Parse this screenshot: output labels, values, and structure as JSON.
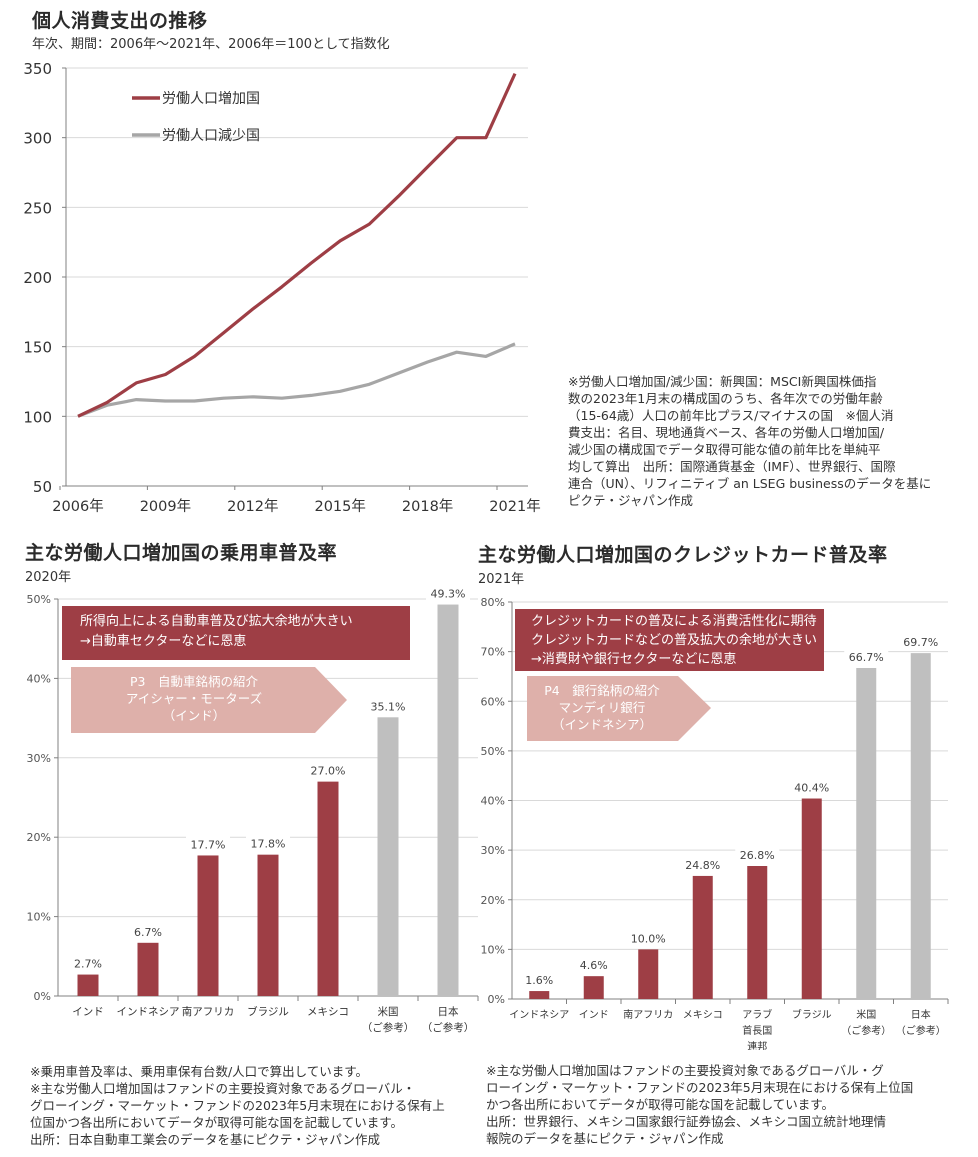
{
  "colors": {
    "increase": "#9e3e45",
    "decrease": "#a6a6a6",
    "reference": "#bfbfbf",
    "callout_bg": "#9e3e45",
    "arrow_bg": "#deb0aa",
    "grid": "#d9d9d9",
    "axis": "#808080"
  },
  "chart_data": [
    {
      "id": "consumption",
      "type": "line",
      "title": "個人消費支出の推移",
      "subtitle": "年次、期間：2006年～2021年、2006年＝100として指数化",
      "xlabel": "",
      "ylabel": "",
      "x": [
        2006,
        2007,
        2008,
        2009,
        2010,
        2011,
        2012,
        2013,
        2014,
        2015,
        2016,
        2017,
        2018,
        2019,
        2020,
        2021
      ],
      "xtick_values": [
        2006,
        2009,
        2012,
        2015,
        2018,
        2021
      ],
      "xtick_labels": [
        "2006年",
        "2009年",
        "2012年",
        "2015年",
        "2018年",
        "2021年"
      ],
      "yticks": [
        50,
        100,
        150,
        200,
        250,
        300,
        350
      ],
      "ylim": [
        50,
        350
      ],
      "grid": true,
      "legend_position": "top-left",
      "series": [
        {
          "name": "労働人口増加国",
          "color_key": "increase",
          "values": [
            100,
            110,
            124,
            130,
            143,
            160,
            177,
            193,
            210,
            226,
            238,
            258,
            279,
            300,
            300,
            346
          ]
        },
        {
          "name": "労働人口減少国",
          "color_key": "decrease",
          "values": [
            100,
            108,
            112,
            111,
            111,
            113,
            114,
            113,
            115,
            118,
            123,
            131,
            139,
            146,
            143,
            152
          ]
        }
      ]
    },
    {
      "id": "car",
      "type": "bar",
      "title": "主な労働人口増加国の乗用車普及率",
      "subtitle": "2020年",
      "categories": [
        [
          "インド"
        ],
        [
          "インドネシア"
        ],
        [
          "南アフリカ"
        ],
        [
          "ブラジル"
        ],
        [
          "メキシコ"
        ],
        [
          "米国",
          "（ご参考）"
        ],
        [
          "日本",
          "（ご参考）"
        ]
      ],
      "values": [
        2.7,
        6.7,
        17.7,
        17.8,
        27.0,
        35.1,
        49.3
      ],
      "value_labels": [
        "2.7%",
        "6.7%",
        "17.7%",
        "17.8%",
        "27.0%",
        "35.1%",
        "49.3%"
      ],
      "is_reference": [
        false,
        false,
        false,
        false,
        false,
        true,
        true
      ],
      "yticks": [
        0,
        10,
        20,
        30,
        40,
        50
      ],
      "ytick_labels": [
        "0%",
        "10%",
        "20%",
        "30%",
        "40%",
        "50%"
      ],
      "ylim": [
        0,
        50
      ],
      "grid": true,
      "unit": "%"
    },
    {
      "id": "credit",
      "type": "bar",
      "title": "主な労働人口増加国のクレジットカード普及率",
      "subtitle": "2021年",
      "categories": [
        [
          "インドネシア"
        ],
        [
          "インド"
        ],
        [
          "南アフリカ"
        ],
        [
          "メキシコ"
        ],
        [
          "アラブ",
          "首長国",
          "連邦"
        ],
        [
          "ブラジル"
        ],
        [
          "米国",
          "（ご参考）"
        ],
        [
          "日本",
          "（ご参考）"
        ]
      ],
      "values": [
        1.6,
        4.6,
        10.0,
        24.8,
        26.8,
        40.4,
        66.7,
        69.7
      ],
      "value_labels": [
        "1.6%",
        "4.6%",
        "10.0%",
        "24.8%",
        "26.8%",
        "40.4%",
        "66.7%",
        "69.7%"
      ],
      "is_reference": [
        false,
        false,
        false,
        false,
        false,
        false,
        true,
        true
      ],
      "yticks": [
        0,
        10,
        20,
        30,
        40,
        50,
        60,
        70,
        80
      ],
      "ytick_labels": [
        "0%",
        "10%",
        "20%",
        "30%",
        "40%",
        "50%",
        "60%",
        "70%",
        "80%"
      ],
      "ylim": [
        0,
        80
      ],
      "grid": true,
      "unit": "%"
    }
  ],
  "line_note": [
    "※労働人口増加国/減少国：新興国：MSCI新興国株価指",
    "数の2023年1月末の構成国のうち、各年次での労働年齢",
    "（15-64歳）人口の前年比プラス/マイナスの国　※個人消",
    "費支出：名目、現地通貨ベース、各年の労働人口増加国/",
    "減少国の構成国でデータ取得可能な値の前年比を単純平",
    "均して算出　出所：国際通貨基金（IMF）、世界銀行、国際",
    "連合（UN）、リフィニティブ an LSEG businessのデータを基に",
    "ピクテ・ジャパン作成"
  ],
  "car_callout": {
    "lines": [
      "所得向上による自動車普及び拡大余地が大きい",
      "→自動車セクターなどに恩恵"
    ]
  },
  "car_arrow": {
    "lines": [
      "P3　自動車銘柄の紹介",
      "アイシャー・モーターズ",
      "（インド）"
    ]
  },
  "car_note": [
    "※乗用車普及率は、乗用車保有台数/人口で算出しています。",
    "※主な労働人口増加国はファンドの主要投資対象であるグローバル・",
    "グローイング・マーケット・ファンドの2023年5月末現在における保有上",
    "位国かつ各出所においてデータが取得可能な国を記載しています。",
    "出所：日本自動車工業会のデータを基にピクテ・ジャパン作成"
  ],
  "credit_callout": {
    "lines": [
      "クレジットカードの普及による消費活性化に期待",
      "クレジットカードなどの普及拡大の余地が大きい",
      "→消費財や銀行セクターなどに恩恵"
    ]
  },
  "credit_arrow": {
    "lines": [
      "P4　銀行銘柄の紹介",
      "マンディリ銀行",
      "（インドネシア）"
    ]
  },
  "credit_note": [
    "※主な労働人口増加国はファンドの主要投資対象であるグローバル・グ",
    "ローイング・マーケット・ファンドの2023年5月末現在における保有上位国",
    "かつ各出所においてデータが取得可能な国を記載しています。",
    "出所：世界銀行、メキシコ国家銀行証券協会、メキシコ国立統計地理情",
    "報院のデータを基にピクテ・ジャパン作成"
  ]
}
